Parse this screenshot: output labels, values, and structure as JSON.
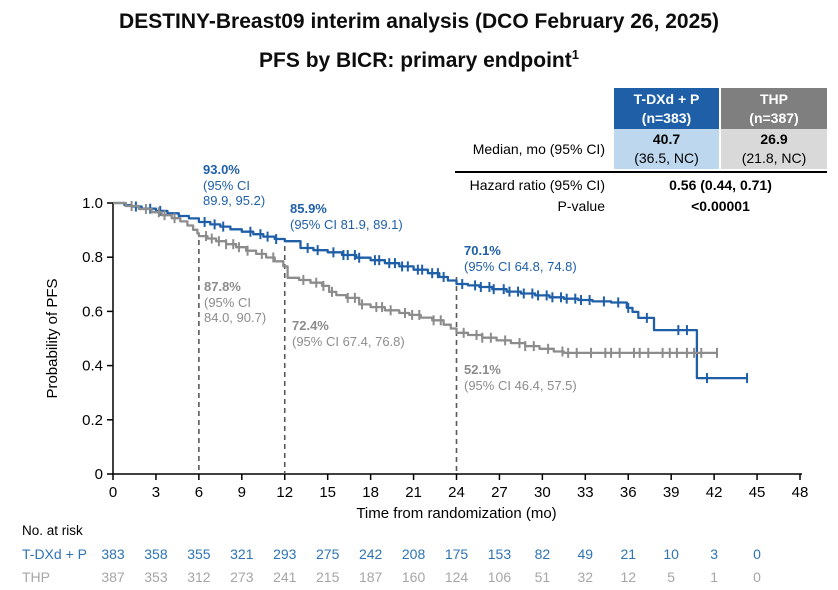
{
  "title": {
    "line1": "DESTINY-Breast09 interim analysis (DCO February 26, 2025)",
    "line2": "PFS by BICR: primary endpoint",
    "footnote_marker": "1"
  },
  "colors": {
    "tdxd_blue": "#1f5fa8",
    "tdxd_risk_blue": "#2e74b5",
    "thp_gray": "#8c8c8c",
    "thp_risk_gray": "#a6a6a6",
    "thp_header_gray": "#7f7f7f",
    "tdxd_cell_light": "#bdd7ee",
    "thp_cell_light": "#d9d9d9",
    "dashed_line": "#595959",
    "axis": "#000000"
  },
  "stats_table": {
    "col_tdxd": {
      "name": "T-DXd + P",
      "n": "(n=383)"
    },
    "col_thp": {
      "name": "THP",
      "n": "(n=387)"
    },
    "median_label": "Median, mo (95% CI)",
    "median_tdxd_value": "40.7",
    "median_tdxd_ci": "(36.5, NC)",
    "median_thp_value": "26.9",
    "median_thp_ci": "(21.8, NC)",
    "hr_label": "Hazard ratio (95% CI)",
    "hr_value": "0.56 (0.44, 0.71)",
    "p_label": "P-value",
    "p_value": "<0.00001"
  },
  "annotations": {
    "tdxd_6mo": {
      "pct": "93.0%",
      "ci_line1": "(95% CI",
      "ci_line2": "89.9, 95.2)"
    },
    "tdxd_12mo": {
      "pct": "85.9%",
      "ci_line1": "(95% CI 81.9, 89.1)",
      "ci_line2": ""
    },
    "tdxd_24mo": {
      "pct": "70.1%",
      "ci_line1": "(95% CI 64.8, 74.8)",
      "ci_line2": ""
    },
    "thp_6mo": {
      "pct": "87.8%",
      "ci_line1": "(95% CI",
      "ci_line2": "84.0, 90.7)"
    },
    "thp_12mo": {
      "pct": "72.4%",
      "ci_line1": "(95% CI 67.4, 76.8)",
      "ci_line2": ""
    },
    "thp_24mo": {
      "pct": "52.1%",
      "ci_line1": "(95% CI 46.4, 57.5)",
      "ci_line2": ""
    }
  },
  "chart_data": {
    "type": "line",
    "subtype": "kaplan-meier-step",
    "title": "PFS by BICR",
    "xlabel": "Time from randomization (mo)",
    "ylabel": "Probability of PFS",
    "xlim": [
      0,
      48
    ],
    "ylim": [
      0,
      1.0
    ],
    "xticks": [
      0,
      3,
      6,
      9,
      12,
      15,
      18,
      21,
      24,
      27,
      30,
      33,
      36,
      39,
      42,
      45,
      48
    ],
    "yticks": [
      0,
      0.2,
      0.4,
      0.6,
      0.8,
      1.0
    ],
    "ytick_labels": [
      "0",
      "0.2",
      "0.4",
      "0.6",
      "0.8",
      "1.0"
    ],
    "grid": false,
    "dashed_lines_at_months": [
      6,
      12,
      24
    ],
    "landmarks": [
      {
        "series": "T-DXd + P",
        "time_mo": 6,
        "pfs_pct": 93.0,
        "ci95": [
          89.9,
          95.2
        ]
      },
      {
        "series": "T-DXd + P",
        "time_mo": 12,
        "pfs_pct": 85.9,
        "ci95": [
          81.9,
          89.1
        ]
      },
      {
        "series": "T-DXd + P",
        "time_mo": 24,
        "pfs_pct": 70.1,
        "ci95": [
          64.8,
          74.8
        ]
      },
      {
        "series": "THP",
        "time_mo": 6,
        "pfs_pct": 87.8,
        "ci95": [
          84.0,
          90.7
        ]
      },
      {
        "series": "THP",
        "time_mo": 12,
        "pfs_pct": 72.4,
        "ci95": [
          67.4,
          76.8
        ]
      },
      {
        "series": "THP",
        "time_mo": 24,
        "pfs_pct": 52.1,
        "ci95": [
          46.4,
          57.5
        ]
      }
    ],
    "series": [
      {
        "name": "T-DXd + P",
        "color": "#1f5fa8",
        "steps": [
          [
            0,
            1.0
          ],
          [
            0.8,
            0.992
          ],
          [
            1.3,
            0.987
          ],
          [
            2.0,
            0.979
          ],
          [
            3.0,
            0.971
          ],
          [
            3.8,
            0.962
          ],
          [
            4.6,
            0.952
          ],
          [
            5.3,
            0.943
          ],
          [
            6.0,
            0.93
          ],
          [
            6.8,
            0.921
          ],
          [
            7.5,
            0.913
          ],
          [
            8.2,
            0.903
          ],
          [
            9.0,
            0.894
          ],
          [
            9.8,
            0.885
          ],
          [
            10.5,
            0.876
          ],
          [
            11.3,
            0.867
          ],
          [
            12.0,
            0.859
          ],
          [
            13.1,
            0.834
          ],
          [
            14.0,
            0.826
          ],
          [
            15.0,
            0.818
          ],
          [
            16.0,
            0.808
          ],
          [
            17.0,
            0.798
          ],
          [
            18.0,
            0.789
          ],
          [
            19.0,
            0.778
          ],
          [
            20.0,
            0.766
          ],
          [
            21.0,
            0.754
          ],
          [
            22.0,
            0.741
          ],
          [
            22.8,
            0.727
          ],
          [
            23.4,
            0.714
          ],
          [
            24.0,
            0.701
          ],
          [
            24.8,
            0.696
          ],
          [
            25.6,
            0.69
          ],
          [
            26.5,
            0.682
          ],
          [
            27.5,
            0.673
          ],
          [
            28.5,
            0.666
          ],
          [
            29.5,
            0.659
          ],
          [
            30.5,
            0.652
          ],
          [
            31.5,
            0.647
          ],
          [
            32.5,
            0.642
          ],
          [
            33.5,
            0.637
          ],
          [
            34.8,
            0.633
          ],
          [
            35.9,
            0.613
          ],
          [
            36.3,
            0.598
          ],
          [
            36.7,
            0.576
          ],
          [
            37.8,
            0.531
          ],
          [
            40.8,
            0.354
          ],
          [
            44.3,
            0.354
          ]
        ],
        "censor_times": [
          1.6,
          2.6,
          3.3,
          6.4,
          7.1,
          7.7,
          9.6,
          10.3,
          10.8,
          11.4,
          13.6,
          14.3,
          15.4,
          16.1,
          16.4,
          16.9,
          17.2,
          18.3,
          18.6,
          19.3,
          19.7,
          20.2,
          20.6,
          21.3,
          21.6,
          22.3,
          22.7,
          23.1,
          24.4,
          25.3,
          25.7,
          26.3,
          26.6,
          27.3,
          27.7,
          28.3,
          28.7,
          29.3,
          29.7,
          30.3,
          30.7,
          31.3,
          31.7,
          32.3,
          32.7,
          33.3,
          34.3,
          35.3,
          36.0,
          37.3,
          39.5,
          40.1,
          41.5,
          44.3
        ]
      },
      {
        "name": "THP",
        "color": "#8c8c8c",
        "steps": [
          [
            0,
            1.0
          ],
          [
            0.9,
            0.989
          ],
          [
            1.8,
            0.978
          ],
          [
            2.7,
            0.966
          ],
          [
            3.4,
            0.955
          ],
          [
            4.1,
            0.944
          ],
          [
            4.7,
            0.932
          ],
          [
            5.2,
            0.917
          ],
          [
            5.6,
            0.901
          ],
          [
            5.9,
            0.888
          ],
          [
            6.0,
            0.878
          ],
          [
            6.6,
            0.869
          ],
          [
            7.2,
            0.859
          ],
          [
            7.9,
            0.848
          ],
          [
            8.6,
            0.837
          ],
          [
            9.3,
            0.824
          ],
          [
            10.0,
            0.812
          ],
          [
            10.7,
            0.799
          ],
          [
            11.3,
            0.785
          ],
          [
            11.9,
            0.766
          ],
          [
            12.2,
            0.724
          ],
          [
            13.0,
            0.716
          ],
          [
            13.8,
            0.706
          ],
          [
            14.6,
            0.694
          ],
          [
            15.1,
            0.672
          ],
          [
            15.6,
            0.66
          ],
          [
            16.3,
            0.65
          ],
          [
            17.2,
            0.626
          ],
          [
            18.0,
            0.616
          ],
          [
            19.0,
            0.604
          ],
          [
            20.0,
            0.594
          ],
          [
            20.7,
            0.587
          ],
          [
            21.5,
            0.577
          ],
          [
            22.3,
            0.567
          ],
          [
            23.1,
            0.551
          ],
          [
            23.6,
            0.537
          ],
          [
            24.0,
            0.521
          ],
          [
            24.8,
            0.513
          ],
          [
            25.8,
            0.503
          ],
          [
            26.8,
            0.493
          ],
          [
            27.8,
            0.483
          ],
          [
            28.8,
            0.472
          ],
          [
            29.8,
            0.462
          ],
          [
            30.8,
            0.452
          ],
          [
            31.5,
            0.447
          ],
          [
            42.2,
            0.447
          ]
        ],
        "censor_times": [
          1.3,
          2.3,
          3.2,
          3.6,
          4.3,
          6.5,
          6.9,
          7.4,
          7.9,
          8.4,
          8.8,
          9.4,
          10.4,
          11.2,
          13.3,
          14.2,
          14.7,
          15.3,
          16.4,
          16.9,
          17.4,
          18.4,
          18.8,
          19.4,
          20.4,
          20.9,
          21.4,
          22.4,
          22.9,
          24.5,
          25.4,
          25.8,
          26.4,
          27.4,
          28.4,
          28.8,
          29.4,
          30.4,
          31.4,
          31.8,
          32.4,
          33.4,
          34.4,
          34.8,
          35.4,
          36.4,
          36.8,
          37.4,
          38.4,
          38.9,
          39.4,
          40.1,
          40.6,
          41.1,
          42.2
        ]
      }
    ]
  },
  "risk_table": {
    "title": "No. at risk",
    "times": [
      0,
      3,
      6,
      9,
      12,
      15,
      18,
      21,
      24,
      27,
      30,
      33,
      36,
      39,
      42,
      45
    ],
    "rows": [
      {
        "label": "T-DXd + P",
        "color": "#2e74b5",
        "values": [
          383,
          358,
          355,
          321,
          293,
          275,
          242,
          208,
          175,
          153,
          82,
          49,
          21,
          10,
          3,
          0
        ]
      },
      {
        "label": "THP",
        "color": "#a6a6a6",
        "values": [
          387,
          353,
          312,
          273,
          241,
          215,
          187,
          160,
          124,
          106,
          51,
          32,
          12,
          5,
          1,
          0
        ]
      }
    ]
  }
}
